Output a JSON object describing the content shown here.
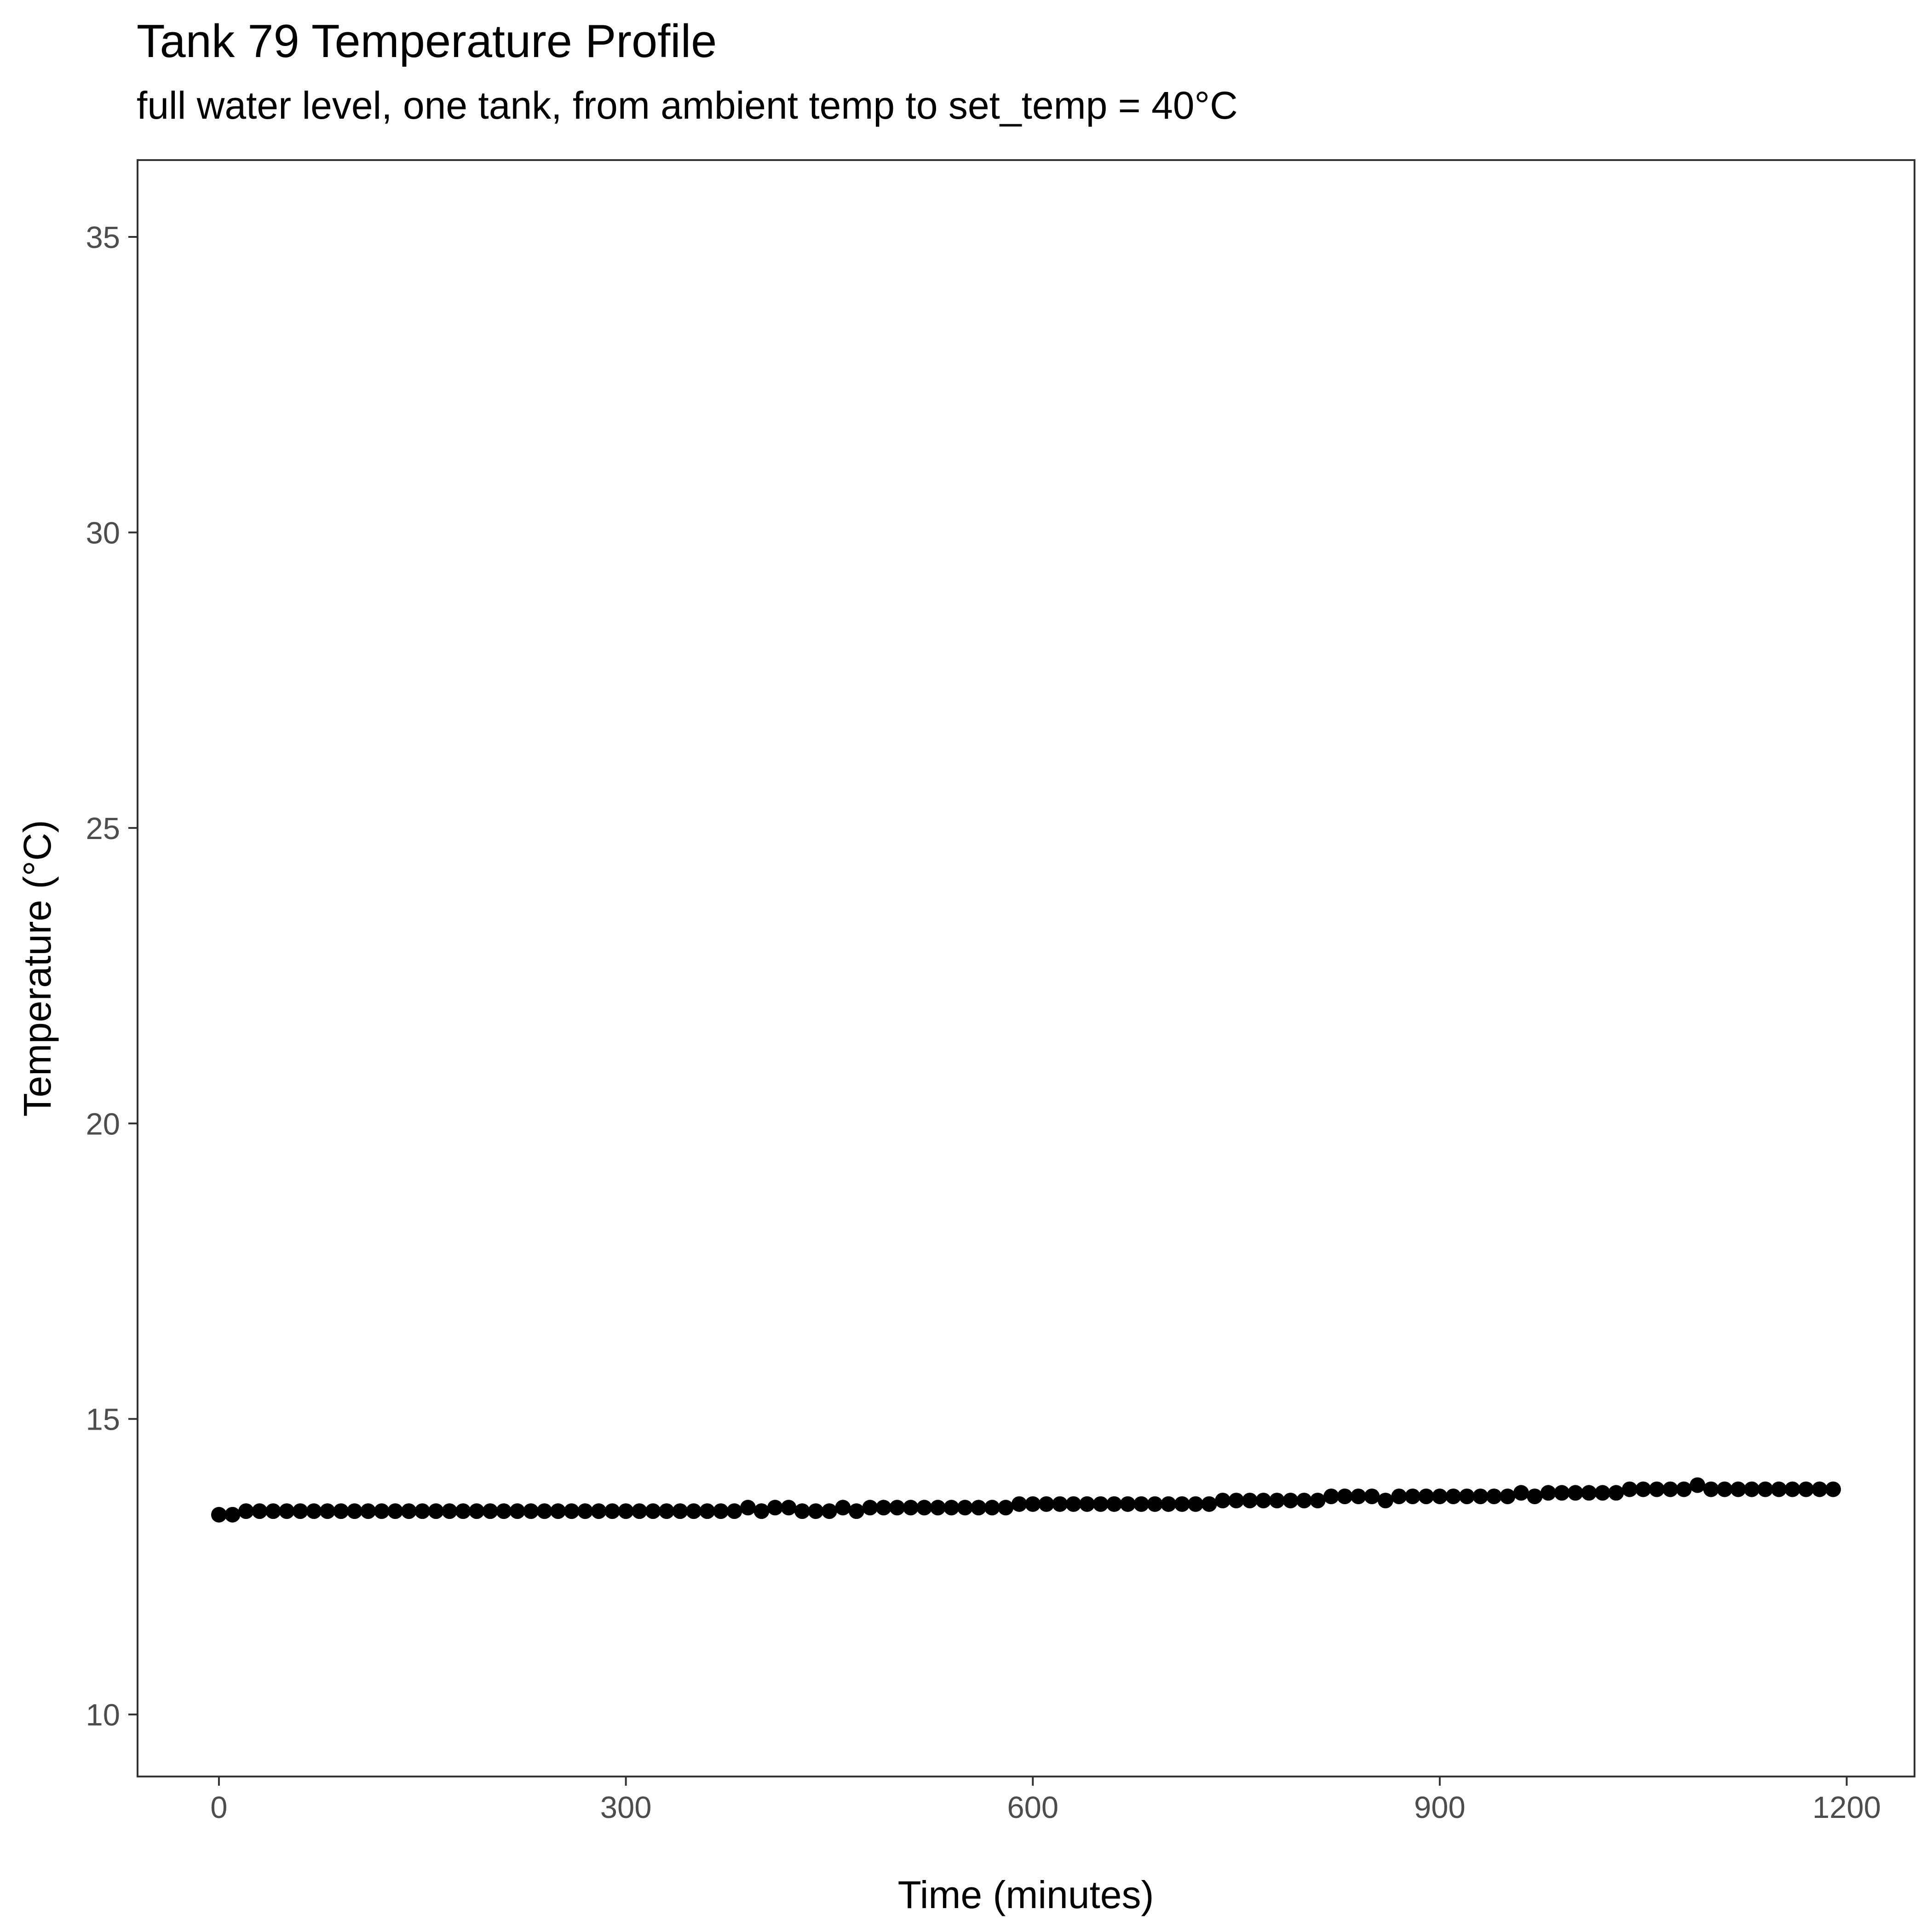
{
  "chart_data": {
    "type": "scatter",
    "title": "Tank 79 Temperature Profile",
    "subtitle": "full water level, one tank, from ambient temp to set_temp = 40°C",
    "xlabel": "Time (minutes)",
    "ylabel": "Temperature (°C)",
    "xlim": [
      -60,
      1250
    ],
    "ylim": [
      8.95,
      36.3
    ],
    "x_ticks": [
      0,
      300,
      600,
      900,
      1200
    ],
    "x_tick_labels": [
      "0",
      "300",
      "600",
      "900",
      "1200"
    ],
    "y_ticks": [
      10,
      15,
      20,
      25,
      30,
      35
    ],
    "y_tick_labels": [
      "10",
      "15",
      "20",
      "25",
      "30",
      "35"
    ],
    "grid": false,
    "legend": "none",
    "point_color": "#000000",
    "series": [
      {
        "x": [
          0,
          10,
          20,
          30,
          40,
          50,
          60,
          70,
          80,
          90,
          100,
          110,
          120,
          130,
          140,
          150,
          160,
          170,
          180,
          190,
          200,
          210,
          220,
          230,
          240,
          250,
          260,
          270,
          280,
          290,
          300,
          310,
          320,
          330,
          340,
          350,
          360,
          370,
          380,
          390,
          400,
          410,
          420,
          430,
          440,
          450,
          460,
          470,
          480,
          490,
          500,
          510,
          520,
          530,
          540,
          550,
          560,
          570,
          580,
          590,
          600,
          610,
          620,
          630,
          640,
          650,
          660,
          670,
          680,
          690,
          700,
          710,
          720,
          730,
          740,
          750,
          760,
          770,
          780,
          790,
          800,
          810,
          820,
          830,
          840,
          850,
          860,
          870,
          880,
          890,
          900,
          910,
          920,
          930,
          940,
          950,
          960,
          970,
          980,
          990,
          1000,
          1010,
          1020,
          1030,
          1040,
          1050,
          1060,
          1070,
          1080,
          1090,
          1100,
          1110,
          1120,
          1130,
          1140,
          1150,
          1160,
          1170,
          1180,
          1190
        ],
        "y": [
          13.38,
          13.38,
          13.44,
          13.44,
          13.44,
          13.44,
          13.44,
          13.44,
          13.44,
          13.44,
          13.44,
          13.44,
          13.44,
          13.44,
          13.44,
          13.44,
          13.44,
          13.44,
          13.44,
          13.44,
          13.44,
          13.44,
          13.44,
          13.44,
          13.44,
          13.44,
          13.44,
          13.44,
          13.44,
          13.44,
          13.44,
          13.44,
          13.44,
          13.44,
          13.44,
          13.44,
          13.44,
          13.44,
          13.44,
          13.5,
          13.44,
          13.5,
          13.5,
          13.44,
          13.44,
          13.44,
          13.5,
          13.44,
          13.5,
          13.5,
          13.5,
          13.5,
          13.5,
          13.5,
          13.5,
          13.5,
          13.5,
          13.5,
          13.5,
          13.56,
          13.56,
          13.56,
          13.56,
          13.56,
          13.56,
          13.56,
          13.56,
          13.56,
          13.56,
          13.56,
          13.56,
          13.56,
          13.56,
          13.56,
          13.62,
          13.62,
          13.62,
          13.62,
          13.62,
          13.62,
          13.62,
          13.62,
          13.69,
          13.69,
          13.69,
          13.69,
          13.62,
          13.69,
          13.69,
          13.69,
          13.69,
          13.69,
          13.69,
          13.69,
          13.69,
          13.69,
          13.75,
          13.69,
          13.75,
          13.75,
          13.75,
          13.75,
          13.75,
          13.75,
          13.81,
          13.81,
          13.81,
          13.81,
          13.81,
          13.88,
          13.81,
          13.81,
          13.81,
          13.81,
          13.81,
          13.81,
          13.81,
          13.81,
          13.81,
          13.81
        ]
      }
    ]
  }
}
